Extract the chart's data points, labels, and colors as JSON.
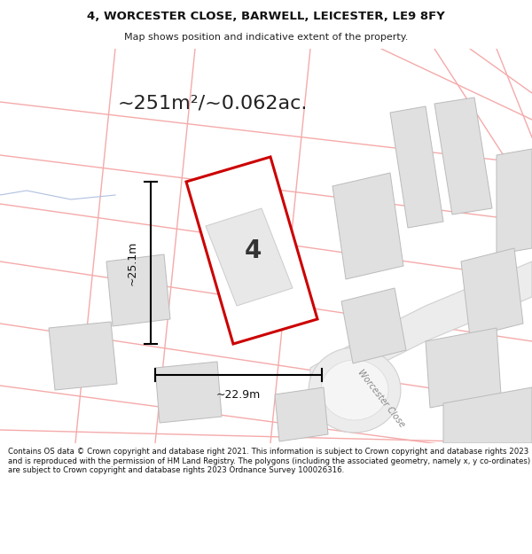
{
  "title_line1": "4, WORCESTER CLOSE, BARWELL, LEICESTER, LE9 8FY",
  "title_line2": "Map shows position and indicative extent of the property.",
  "area_label": "~251m²/~0.062ac.",
  "plot_number": "4",
  "dim_width": "~22.9m",
  "dim_height": "~25.1m",
  "road_label": "Worcester Close",
  "footer_text": "Contains OS data © Crown copyright and database right 2021. This information is subject to Crown copyright and database rights 2023 and is reproduced with the permission of HM Land Registry. The polygons (including the associated geometry, namely x, y co-ordinates) are subject to Crown copyright and database rights 2023 Ordnance Survey 100026316.",
  "bg_color": "#ffffff",
  "map_bg": "#ffffff",
  "plot_fill": "#ffffff",
  "plot_edge": "#cc0000",
  "building_fill": "#e0e0e0",
  "building_edge": "#bbbbbb",
  "road_fill": "#eeeeee",
  "road_edge": "#cccccc",
  "pink_line": "#f5aaaa",
  "blue_line": "#b0c0e0",
  "pink_fill": "#fdf0f0",
  "dim_color": "#111111",
  "text_color": "#333333"
}
